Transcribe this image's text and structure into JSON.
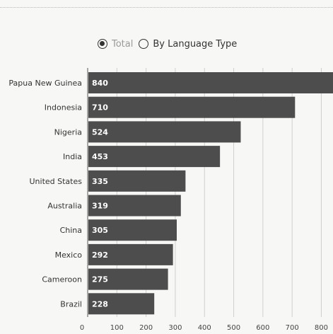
{
  "controls": {
    "mode_options": [
      {
        "label": "Total",
        "selected": true
      },
      {
        "label": "By Language Type",
        "selected": false
      }
    ]
  },
  "colors": {
    "bar": "#4d4d4d",
    "bar_text": "#ffffff",
    "grid": "#cfcfcf",
    "tick": "#444444"
  },
  "chart_data": {
    "type": "bar",
    "orientation": "horizontal",
    "title": "",
    "xlabel": "",
    "ylabel": "",
    "categories": [
      "Papua New Guinea",
      "Indonesia",
      "Nigeria",
      "India",
      "United States",
      "Australia",
      "China",
      "Mexico",
      "Cameroon",
      "Brazil"
    ],
    "values": [
      840,
      710,
      524,
      453,
      335,
      319,
      305,
      292,
      275,
      228
    ],
    "xlim": [
      0,
      840
    ],
    "xticks": [
      0,
      100,
      200,
      300,
      400,
      500,
      600,
      700,
      800
    ],
    "grid": true,
    "legend": "none"
  }
}
